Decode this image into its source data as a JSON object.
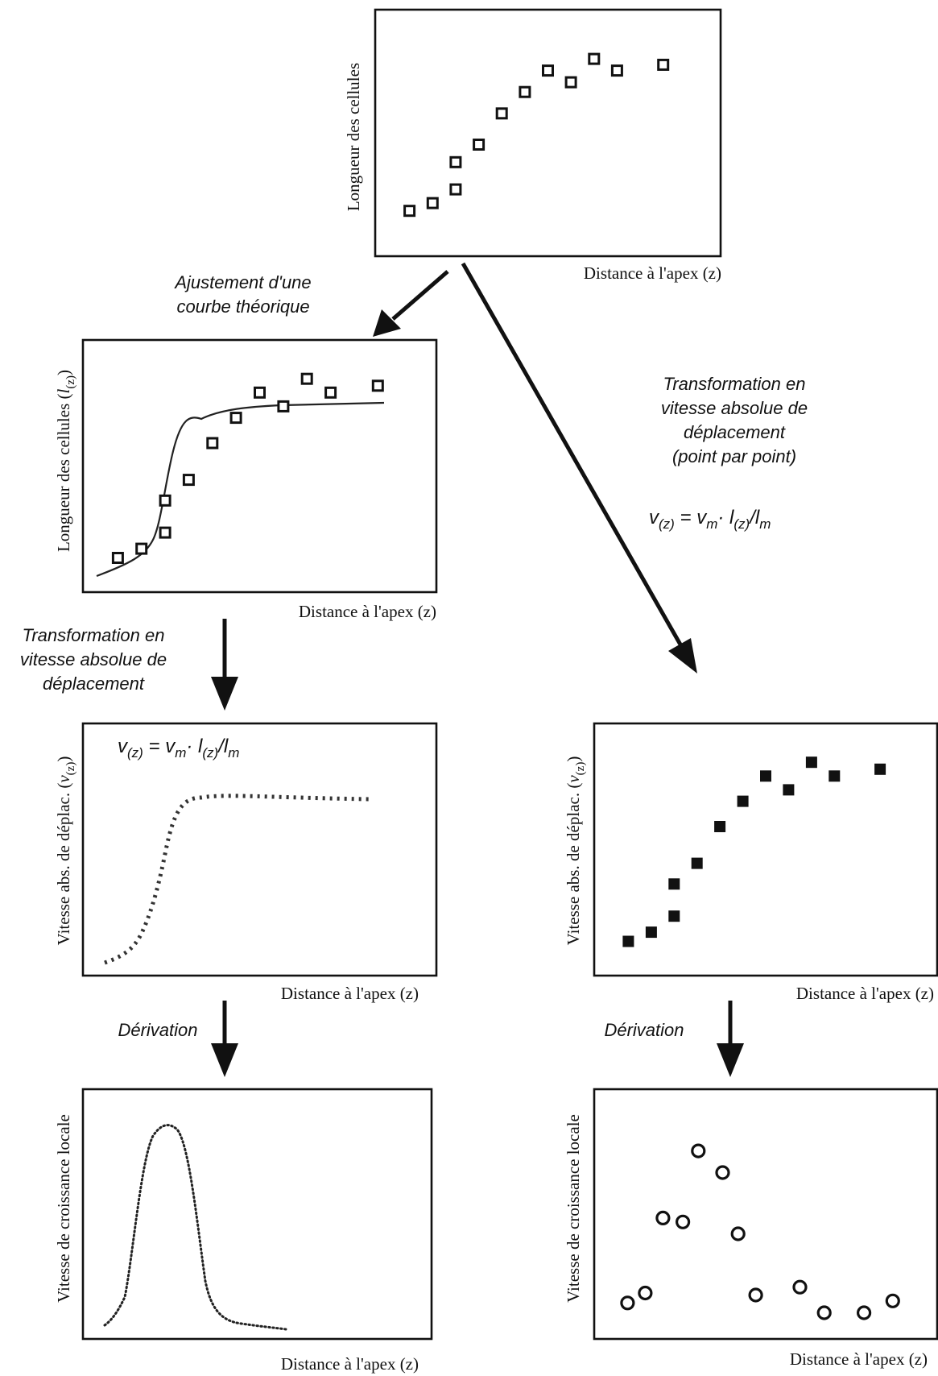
{
  "text": {
    "axis_x": "Distance à l'apex (z)",
    "y_length": "Longueur des cellules",
    "y_length_lz": "Longueur des cellules (",
    "y_speed": "Vitesse abs. de déplac. (",
    "y_growth": "Vitesse de croissance locale",
    "l_sym": "l",
    "v_sym": "v",
    "z_sub": "(z)",
    "close_paren": ")",
    "formula_v": "v",
    "formula_z": "(z)",
    "formula_eq": " = ",
    "formula_vm": "v",
    "formula_m": "m",
    "formula_dot": "· ",
    "formula_l": "l",
    "formula_z2": "(z)",
    "formula_slash": "/",
    "formula_lm": "l",
    "formula_m2": "m",
    "step_fit_line1": "Ajustement d'une",
    "step_fit_line2": "courbe théorique",
    "step_transform_line1": "Transformation en",
    "step_transform_line2": "vitesse absolue de",
    "step_transform_line3": "déplacement",
    "step_transform_right_line4": "(point par point)",
    "step_derivation": "Dérivation"
  },
  "chart_data": [
    {
      "id": "raw-lengths",
      "type": "scatter",
      "marker": "open-square",
      "xlabel": "Distance à l'apex (z)",
      "ylabel": "Longueur des cellules",
      "x": [
        1,
        2,
        3,
        3,
        4,
        5,
        6,
        7,
        8,
        9,
        10,
        12
      ],
      "y": [
        0.0,
        0.04,
        0.11,
        0.25,
        0.34,
        0.5,
        0.61,
        0.72,
        0.66,
        0.78,
        0.72,
        0.75
      ],
      "xlim": [
        0,
        14
      ],
      "ylim": [
        -0.15,
        0.95
      ]
    },
    {
      "id": "fitted-lengths",
      "type": "scatter",
      "marker": "open-square",
      "fit": "sigmoid",
      "xlabel": "Distance à l'apex (z)",
      "ylabel": "Longueur des cellules (l(z))",
      "x": [
        1,
        2,
        3,
        3,
        4,
        5,
        6,
        7,
        8,
        9,
        10,
        12
      ],
      "y": [
        0.0,
        0.04,
        0.11,
        0.25,
        0.34,
        0.5,
        0.61,
        0.72,
        0.66,
        0.78,
        0.72,
        0.75
      ],
      "xlim": [
        0,
        14
      ],
      "ylim": [
        -0.1,
        0.9
      ]
    },
    {
      "id": "fitted-speed",
      "type": "line",
      "style": "starred",
      "xlabel": "Distance à l'apex (z)",
      "ylabel": "Vitesse abs. de déplac. (v(z))",
      "xlim": [
        0,
        14
      ],
      "ylim": [
        -0.1,
        0.9
      ]
    },
    {
      "id": "raw-speed",
      "type": "scatter",
      "marker": "filled-square",
      "xlabel": "Distance à l'apex (z)",
      "ylabel": "Vitesse abs. de déplac. (v(z))",
      "x": [
        1,
        2,
        3,
        3,
        4,
        5,
        6,
        7,
        8,
        9,
        10,
        12
      ],
      "y": [
        0.0,
        0.04,
        0.11,
        0.25,
        0.34,
        0.5,
        0.61,
        0.72,
        0.66,
        0.78,
        0.72,
        0.75
      ],
      "xlim": [
        0,
        14
      ],
      "ylim": [
        -0.1,
        0.9
      ]
    },
    {
      "id": "fitted-growth",
      "type": "line",
      "style": "dotted",
      "xlabel": "Distance à l'apex (z)",
      "ylabel": "Vitesse de croissance locale",
      "xlim": [
        0,
        14
      ],
      "ylim": [
        -0.1,
        1.1
      ]
    },
    {
      "id": "raw-growth",
      "type": "scatter",
      "marker": "open-circle",
      "xlabel": "Distance à l'apex (z)",
      "ylabel": "Vitesse de croissance locale",
      "x": [
        1,
        1.8,
        2.6,
        3.5,
        4.2,
        5.3,
        6.0,
        6.8,
        8.8,
        9.9,
        11.7,
        13.0
      ],
      "y": [
        0.05,
        0.1,
        0.48,
        0.46,
        0.82,
        0.71,
        0.4,
        0.09,
        0.13,
        0.0,
        0.0,
        0.06
      ],
      "xlim": [
        0,
        14.5
      ],
      "ylim": [
        -0.1,
        1.1
      ]
    }
  ]
}
